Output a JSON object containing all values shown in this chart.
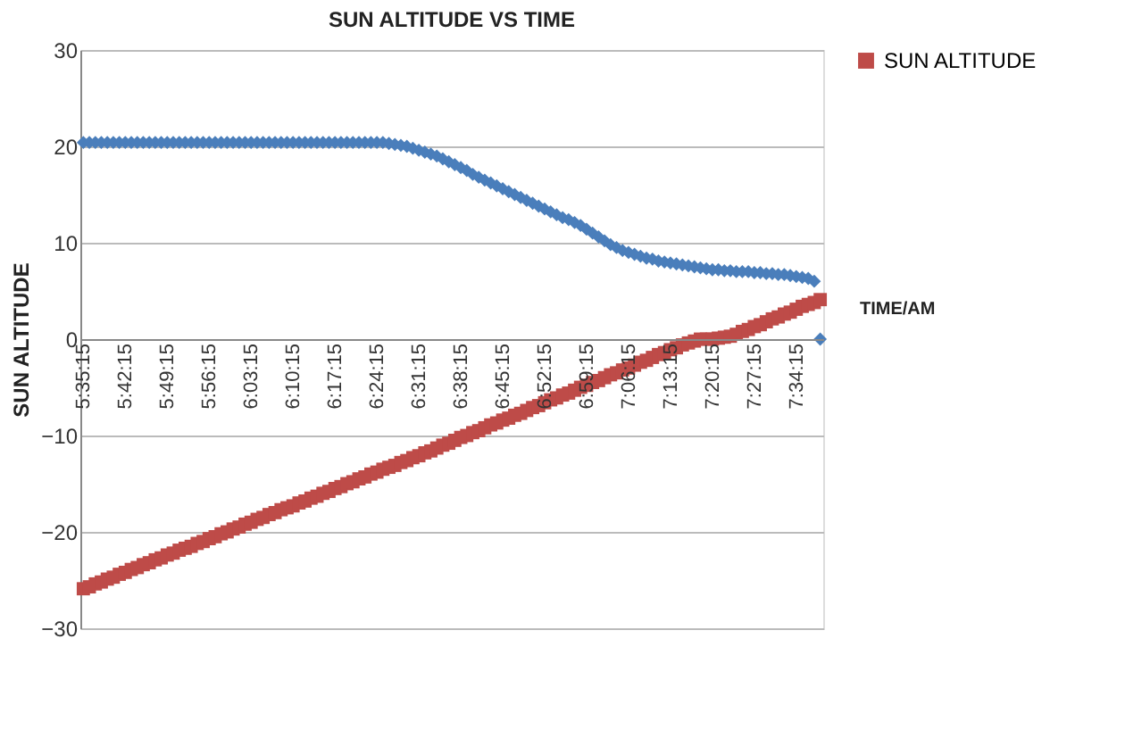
{
  "chart_data": {
    "type": "scatter",
    "title": "SUN ALTITUDE VS TIME",
    "ylabel": "SUN ALTITUDE",
    "xlabel": "TIME/AM",
    "categories": [
      "5:35:15",
      null,
      null,
      null,
      null,
      null,
      null,
      "5:42:15",
      null,
      null,
      null,
      null,
      null,
      null,
      "5:49:15",
      null,
      null,
      null,
      null,
      null,
      null,
      "5:56:15",
      null,
      null,
      null,
      null,
      null,
      null,
      "6:03:15",
      null,
      null,
      null,
      null,
      null,
      null,
      "6:10:15",
      null,
      null,
      null,
      null,
      null,
      null,
      "6:17:15",
      null,
      null,
      null,
      null,
      null,
      null,
      "6:24:15",
      null,
      null,
      null,
      null,
      null,
      null,
      "6:31:15",
      null,
      null,
      null,
      null,
      null,
      null,
      "6:38:15",
      null,
      null,
      null,
      null,
      null,
      null,
      "6:45:15",
      null,
      null,
      null,
      null,
      null,
      null,
      "6:52:15",
      null,
      null,
      null,
      null,
      null,
      null,
      "6:59:15",
      null,
      null,
      null,
      null,
      null,
      null,
      "7:06:15",
      null,
      null,
      null,
      null,
      null,
      null,
      "7:13:15",
      null,
      null,
      null,
      null,
      null,
      null,
      "7:20:15",
      null,
      null,
      null,
      null,
      null,
      null,
      "7:27:15",
      null,
      null,
      null,
      null,
      null,
      null,
      "7:34:15",
      null,
      null,
      null,
      null
    ],
    "series": [
      {
        "color": "#4a7ebb",
        "marker": "diamond",
        "values": [
          20.4,
          20.4,
          20.4,
          20.4,
          20.4,
          20.4,
          20.4,
          20.4,
          20.4,
          20.4,
          20.4,
          20.4,
          20.4,
          20.4,
          20.4,
          20.4,
          20.4,
          20.4,
          20.4,
          20.4,
          20.4,
          20.4,
          20.4,
          20.4,
          20.4,
          20.4,
          20.4,
          20.4,
          20.4,
          20.4,
          20.4,
          20.4,
          20.4,
          20.4,
          20.4,
          20.4,
          20.4,
          20.4,
          20.4,
          20.4,
          20.4,
          20.4,
          20.4,
          20.4,
          20.4,
          20.4,
          20.4,
          20.4,
          20.4,
          20.4,
          20.4,
          20.3,
          20.2,
          20.1,
          20.0,
          19.8,
          19.6,
          19.4,
          19.2,
          19.0,
          18.7,
          18.4,
          18.1,
          17.8,
          17.5,
          17.1,
          16.8,
          16.5,
          16.2,
          15.9,
          15.6,
          15.3,
          15.0,
          14.7,
          14.4,
          14.1,
          13.8,
          13.5,
          13.2,
          12.9,
          12.6,
          12.4,
          12.1,
          11.8,
          11.4,
          11.0,
          10.6,
          10.2,
          9.8,
          9.5,
          9.2,
          9.0,
          8.8,
          8.6,
          8.4,
          8.3,
          8.1,
          8.0,
          7.9,
          7.8,
          7.7,
          7.6,
          7.5,
          7.4,
          7.3,
          7.2,
          7.2,
          7.1,
          7.1,
          7.0,
          7.0,
          7.0,
          6.9,
          6.9,
          6.8,
          6.8,
          6.7,
          6.7,
          6.6,
          6.5,
          6.4,
          6.3,
          6.0,
          0.0
        ]
      },
      {
        "name": "SUN ALTITUDE",
        "color": "#be4b48",
        "marker": "square",
        "values": [
          -25.9,
          -25.7,
          -25.4,
          -25.2,
          -24.9,
          -24.7,
          -24.4,
          -24.2,
          -23.9,
          -23.7,
          -23.4,
          -23.2,
          -22.9,
          -22.7,
          -22.4,
          -22.2,
          -21.9,
          -21.7,
          -21.5,
          -21.2,
          -21.0,
          -20.7,
          -20.5,
          -20.2,
          -20.0,
          -19.7,
          -19.5,
          -19.2,
          -19.0,
          -18.7,
          -18.5,
          -18.2,
          -18.0,
          -17.7,
          -17.5,
          -17.3,
          -17.0,
          -16.8,
          -16.5,
          -16.3,
          -16.0,
          -15.8,
          -15.5,
          -15.3,
          -15.0,
          -14.8,
          -14.5,
          -14.3,
          -14.0,
          -13.8,
          -13.5,
          -13.3,
          -13.1,
          -12.8,
          -12.6,
          -12.3,
          -12.1,
          -11.8,
          -11.6,
          -11.3,
          -11.0,
          -10.8,
          -10.5,
          -10.2,
          -10.0,
          -9.7,
          -9.5,
          -9.2,
          -8.9,
          -8.7,
          -8.4,
          -8.2,
          -7.9,
          -7.7,
          -7.4,
          -7.1,
          -6.9,
          -6.6,
          -6.3,
          -6.1,
          -5.8,
          -5.6,
          -5.3,
          -5.0,
          -4.8,
          -4.5,
          -4.3,
          -4.0,
          -3.7,
          -3.5,
          -3.2,
          -3.0,
          -2.7,
          -2.4,
          -2.2,
          -1.9,
          -1.6,
          -1.4,
          -1.1,
          -0.9,
          -0.6,
          -0.4,
          -0.2,
          0.0,
          0.0,
          0.0,
          0.1,
          0.2,
          0.3,
          0.5,
          0.8,
          1.0,
          1.3,
          1.5,
          1.8,
          2.1,
          2.3,
          2.6,
          2.8,
          3.1,
          3.4,
          3.6,
          3.8,
          4.1
        ]
      }
    ],
    "ylim": [
      -30,
      30
    ],
    "yticks": [
      -30,
      -20,
      -10,
      0,
      10,
      20,
      30
    ],
    "grid": "y",
    "legend": "right"
  }
}
